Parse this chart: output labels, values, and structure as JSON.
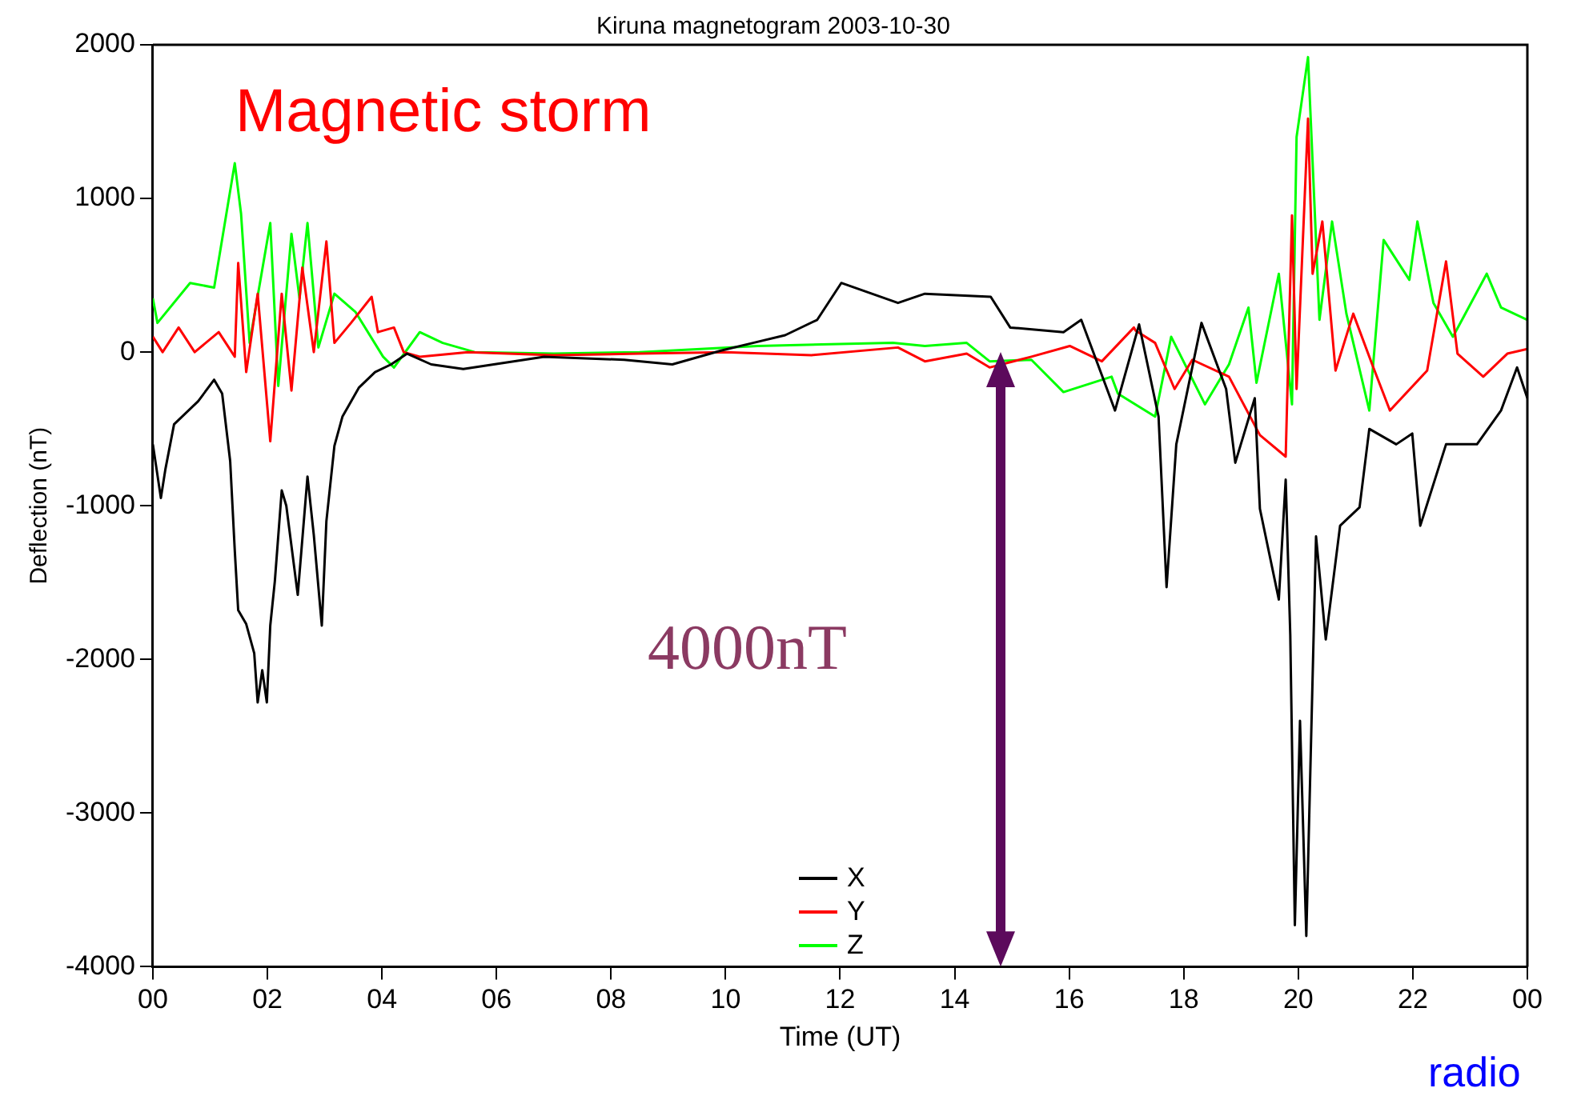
{
  "chart_data": {
    "type": "line",
    "title": "Kiruna magnetogram 2003-10-30",
    "xlabel": "Time (UT)",
    "ylabel": "Deflection (nT)",
    "annotations": [
      "Magnetic storm",
      "4000nT",
      "radio"
    ],
    "xlim": [
      0,
      24
    ],
    "xticks": [
      {
        "value": 0,
        "label": "00"
      },
      {
        "value": 2,
        "label": "02"
      },
      {
        "value": 4,
        "label": "04"
      },
      {
        "value": 6,
        "label": "06"
      },
      {
        "value": 8,
        "label": "08"
      },
      {
        "value": 10,
        "label": "10"
      },
      {
        "value": 12,
        "label": "12"
      },
      {
        "value": 14,
        "label": "14"
      },
      {
        "value": 16,
        "label": "16"
      },
      {
        "value": 18,
        "label": "18"
      },
      {
        "value": 20,
        "label": "20"
      },
      {
        "value": 22,
        "label": "22"
      },
      {
        "value": 24,
        "label": "00"
      }
    ],
    "ylim": [
      -4000,
      2000
    ],
    "yticks": [
      -4000,
      -3000,
      -2000,
      -1000,
      0,
      1000,
      2000
    ],
    "grid": false,
    "legend": "bottom",
    "series": [
      {
        "name": "X",
        "color": "#000000",
        "x": [
          0,
          0.14,
          0.22,
          0.37,
          0.79,
          1.07,
          1.21,
          1.35,
          1.43,
          1.49,
          1.63,
          1.77,
          1.83,
          1.91,
          1.99,
          2.05,
          2.13,
          2.25,
          2.33,
          2.53,
          2.7,
          2.81,
          2.95,
          3.03,
          3.17,
          3.31,
          3.6,
          3.88,
          4.16,
          4.44,
          4.86,
          5.42,
          6.83,
          8.23,
          9.07,
          9.92,
          10.48,
          11.04,
          11.6,
          12.02,
          13.01,
          13.48,
          14.63,
          14.97,
          15.9,
          16.21,
          16.8,
          17.22,
          17.56,
          17.7,
          17.87,
          18.31,
          18.74,
          18.9,
          19.24,
          19.33,
          19.66,
          19.78,
          19.86,
          19.94,
          20.03,
          20.14,
          20.31,
          20.48,
          20.73,
          21.07,
          21.24,
          21.71,
          21.99,
          22.13,
          22.58,
          23.12,
          23.54,
          23.82,
          24
        ],
        "values": [
          -600,
          -950,
          -760,
          -470,
          -320,
          -180,
          -270,
          -710,
          -1290,
          -1680,
          -1770,
          -1960,
          -2280,
          -2070,
          -2280,
          -1780,
          -1490,
          -900,
          -1000,
          -1580,
          -810,
          -1190,
          -1780,
          -1100,
          -610,
          -420,
          -230,
          -130,
          -80,
          -10,
          -80,
          -110,
          -30,
          -50,
          -80,
          10,
          60,
          110,
          210,
          450,
          320,
          380,
          360,
          160,
          130,
          210,
          -380,
          180,
          -420,
          -1530,
          -600,
          190,
          -240,
          -720,
          -300,
          -1020,
          -1610,
          -830,
          -1840,
          -3730,
          -2400,
          -3800,
          -1200,
          -1870,
          -1130,
          -1010,
          -500,
          -600,
          -530,
          -1130,
          -600,
          -600,
          -380,
          -100,
          -300
        ]
      },
      {
        "name": "Y",
        "color": "#ff0000",
        "x": [
          0,
          0.17,
          0.45,
          0.73,
          1.15,
          1.43,
          1.49,
          1.63,
          1.83,
          2.05,
          2.25,
          2.42,
          2.61,
          2.81,
          3.03,
          3.17,
          3.46,
          3.82,
          3.93,
          4.21,
          4.38,
          4.66,
          5.5,
          7,
          8.5,
          10,
          11.5,
          13.01,
          13.48,
          14.21,
          14.61,
          15.34,
          16.01,
          16.57,
          17.13,
          17.16,
          17.5,
          17.84,
          18.15,
          18.79,
          19.33,
          19.78,
          19.89,
          19.97,
          20.17,
          20.25,
          20.42,
          20.65,
          20.96,
          21.29,
          21.6,
          22.25,
          22.58,
          22.78,
          23.23,
          23.65,
          24
        ],
        "values": [
          100,
          0,
          160,
          0,
          130,
          -30,
          580,
          -130,
          380,
          -580,
          380,
          -250,
          550,
          0,
          720,
          60,
          190,
          360,
          130,
          160,
          0,
          -30,
          0,
          -20,
          -10,
          0,
          -20,
          30,
          -60,
          -10,
          -100,
          -30,
          40,
          -60,
          160,
          140,
          60,
          -240,
          -50,
          -160,
          -540,
          -680,
          890,
          -240,
          1520,
          510,
          850,
          -120,
          250,
          -80,
          -380,
          -120,
          590,
          -10,
          -160,
          -10,
          20
        ]
      },
      {
        "name": "Z",
        "color": "#00ff00",
        "x": [
          0,
          0.08,
          0.65,
          1.07,
          1.43,
          1.54,
          1.69,
          2.05,
          2.19,
          2.42,
          2.56,
          2.7,
          2.89,
          3.17,
          3.54,
          4.02,
          4.21,
          4.66,
          5.06,
          5.62,
          7,
          8.5,
          10.56,
          12.92,
          13.48,
          14.21,
          14.61,
          15.34,
          15.9,
          16.74,
          16.85,
          17.5,
          17.78,
          18.37,
          18.79,
          19.13,
          19.27,
          19.66,
          19.89,
          19.97,
          20.17,
          20.37,
          20.59,
          20.84,
          21.24,
          21.49,
          21.94,
          22.08,
          22.36,
          22.7,
          23.29,
          23.54,
          24
        ],
        "values": [
          350,
          190,
          450,
          420,
          1230,
          900,
          60,
          840,
          -220,
          770,
          350,
          840,
          30,
          380,
          260,
          -30,
          -100,
          130,
          60,
          0,
          -10,
          0,
          40,
          60,
          40,
          60,
          -60,
          -50,
          -260,
          -160,
          -270,
          -420,
          100,
          -340,
          -80,
          290,
          -200,
          510,
          -340,
          1400,
          1920,
          210,
          850,
          250,
          -380,
          730,
          470,
          850,
          320,
          100,
          510,
          290,
          210
        ]
      }
    ]
  }
}
